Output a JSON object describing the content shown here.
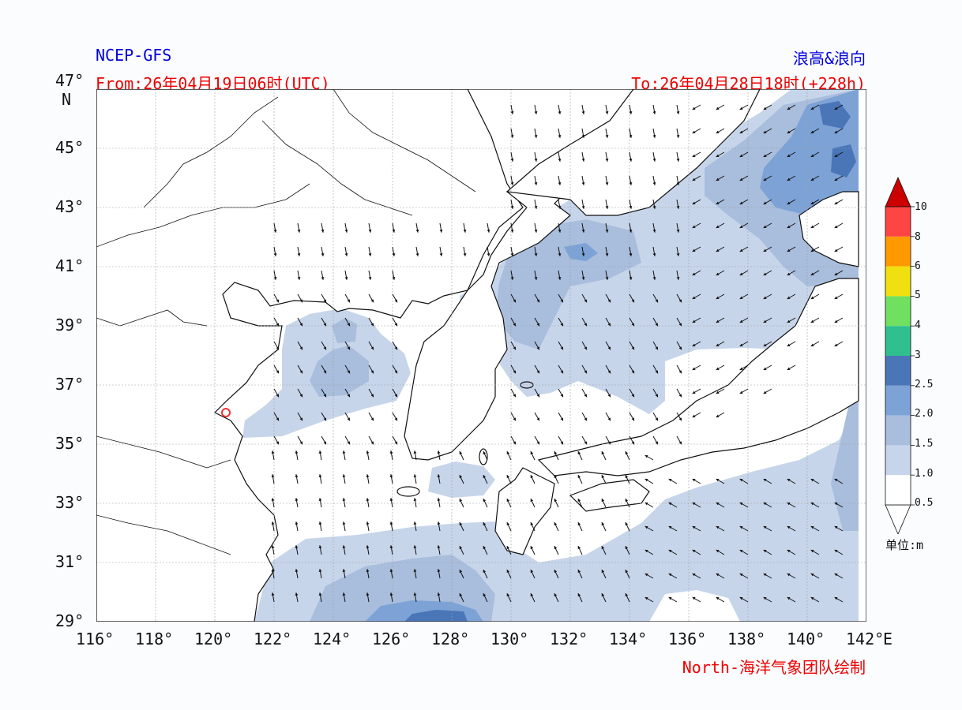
{
  "header": {
    "model": "NCEP-GFS",
    "product": "浪高&浪向",
    "from": "From:26年04月19日06时(UTC)",
    "to": "To:26年04月28日18时(+228h)"
  },
  "footer": {
    "credit": "North-海洋气象团队绘制"
  },
  "axes": {
    "lat_labels": [
      "47°",
      "45°",
      "43°",
      "41°",
      "39°",
      "37°",
      "35°",
      "33°",
      "31°",
      "29°"
    ],
    "lat_unit": "N",
    "lon_labels": [
      "116°",
      "118°",
      "120°",
      "122°",
      "124°",
      "126°",
      "128°",
      "130°",
      "132°",
      "134°",
      "136°",
      "138°",
      "140°",
      "142°"
    ],
    "lon_unit": "E",
    "lat_range": [
      29,
      47
    ],
    "lon_range": [
      116,
      142
    ],
    "grid": true
  },
  "colorbar": {
    "tick_labels": [
      "0.5",
      "1.0",
      "1.5",
      "2.0",
      "2.5",
      "3",
      "4",
      "5",
      "6",
      "8",
      "10"
    ],
    "unit_label": "单位:m",
    "colors": [
      "#ffffff",
      "#ffffff",
      "#c7d5ea",
      "#a9bddc",
      "#7da3d6",
      "#4a76b8",
      "#30c090",
      "#70e060",
      "#f0e010",
      "#ff9900",
      "#ff4444",
      "#cc0000"
    ]
  },
  "marker": {
    "color": "#ee3333"
  }
}
